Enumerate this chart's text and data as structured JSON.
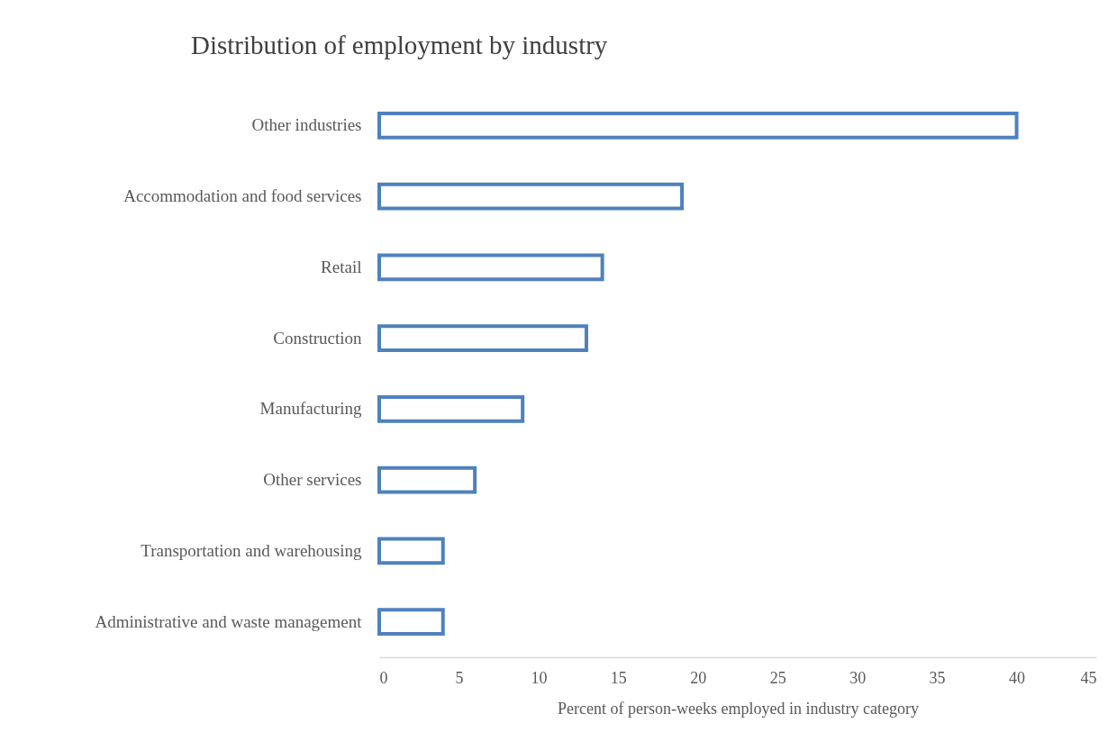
{
  "chart_data": {
    "type": "bar",
    "orientation": "horizontal",
    "title": "Distribution of employment by industry",
    "xlabel": "Percent of person-weeks employed in industry category",
    "categories": [
      "Other industries",
      "Accommodation and food services",
      "Retail",
      "Construction",
      "Manufacturing",
      "Other services",
      "Transportation and warehousing",
      "Administrative and waste management"
    ],
    "values": [
      40,
      19,
      14,
      13,
      9,
      6,
      4,
      4
    ],
    "color": "#4f81bd",
    "xlim": [
      0,
      45
    ],
    "xticks": [
      0,
      5,
      10,
      15,
      20,
      25,
      30,
      35,
      40,
      45
    ],
    "grid": false
  }
}
